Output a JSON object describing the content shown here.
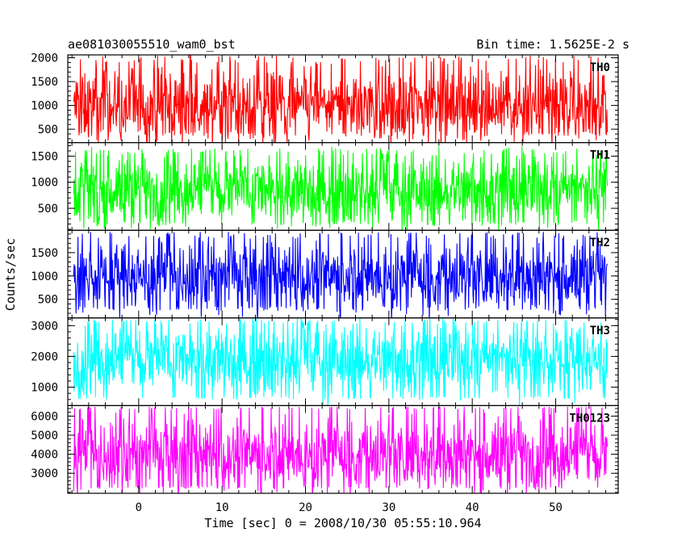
{
  "chart_data": {
    "type": "line",
    "title_left": "ae081030055510_wam0_bst",
    "title_right": "Bin time: 1.5625E-2 s",
    "xlabel": "Time [sec] 0 = 2008/10/30 05:55:10.964",
    "ylabel": "Counts/sec",
    "xlim": [
      -8.5,
      57.5
    ],
    "x_data_range": [
      -7.8,
      56.2
    ],
    "x_ticks": [
      0,
      10,
      20,
      30,
      40,
      50
    ],
    "x_tick_labels": [
      "0",
      "10",
      "20",
      "30",
      "40",
      "50"
    ],
    "panels": [
      {
        "name": "TH0",
        "color": "#ff0000",
        "ylim": [
          220,
          2060
        ],
        "yticks": [
          500,
          1000,
          1500,
          2000
        ],
        "ytick_labels": [
          "500",
          "1000",
          "1500",
          "2000"
        ],
        "mean": 1000,
        "spread_low": 350,
        "spread_high": 2050
      },
      {
        "name": "TH1",
        "color": "#00ff00",
        "ylim": [
          80,
          1760
        ],
        "yticks": [
          500,
          1000,
          1500
        ],
        "ytick_labels": [
          "500",
          "1000",
          "1500"
        ],
        "mean": 850,
        "spread_low": 150,
        "spread_high": 1650
      },
      {
        "name": "TH2",
        "color": "#0000ff",
        "ylim": [
          100,
          1980
        ],
        "yticks": [
          500,
          1000,
          1500
        ],
        "ytick_labels": [
          "500",
          "1000",
          "1500"
        ],
        "mean": 1000,
        "spread_low": 250,
        "spread_high": 1950
      },
      {
        "name": "TH3",
        "color": "#00ffff",
        "ylim": [
          400,
          3250
        ],
        "yticks": [
          1000,
          2000,
          3000
        ],
        "ytick_labels": [
          "1000",
          "2000",
          "3000"
        ],
        "mean": 1900,
        "spread_low": 600,
        "spread_high": 3200
      },
      {
        "name": "TH0123",
        "color": "#ff00ff",
        "ylim": [
          1950,
          6550
        ],
        "yticks": [
          3000,
          4000,
          5000,
          6000
        ],
        "ytick_labels": [
          "3000",
          "4000",
          "5000",
          "6000"
        ],
        "mean": 4000,
        "spread_low": 2200,
        "spread_high": 6500
      }
    ]
  }
}
